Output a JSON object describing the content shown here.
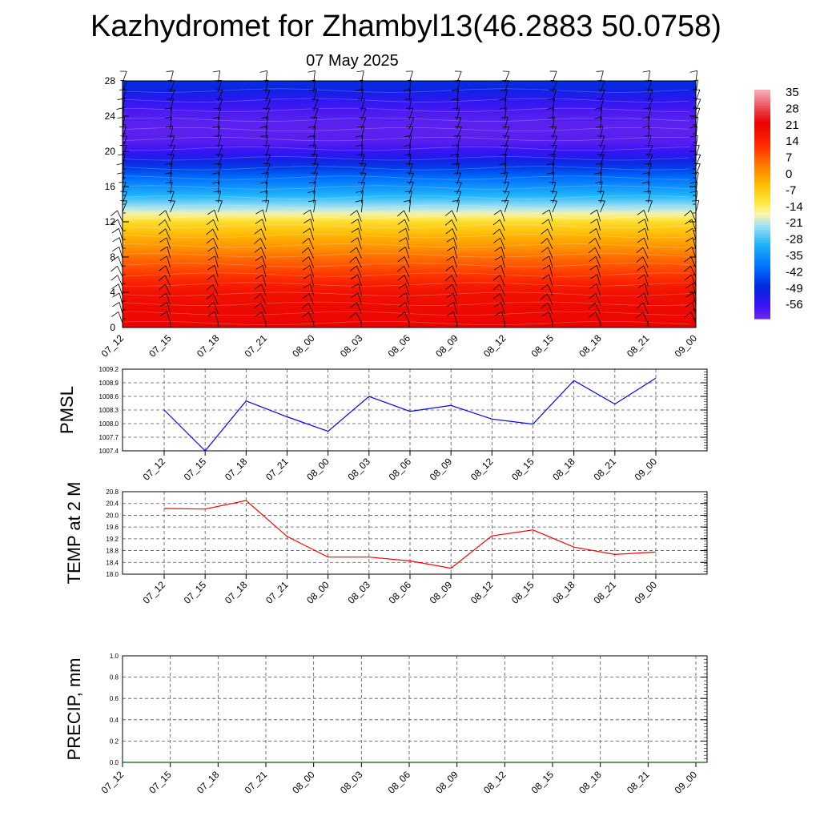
{
  "title": "Kazhydromet for Zhambyl13(46.2883 50.0758)",
  "subtitle": "07 May 2025",
  "chart_data": [
    {
      "type": "heatmap",
      "title": "",
      "ylim": [
        0,
        28
      ],
      "y_ticks": [
        "0",
        "4",
        "8",
        "12",
        "16",
        "20",
        "24",
        "28"
      ],
      "x_ticks": [
        "07_12",
        "07_15",
        "07_18",
        "07_21",
        "08_00",
        "08_03",
        "08_06",
        "08_09",
        "08_12",
        "08_15",
        "08_18",
        "08_21",
        "09_00"
      ],
      "colorbar_labels": [
        "35",
        "28",
        "21",
        "14",
        "7",
        "0",
        "-7",
        "-14",
        "-21",
        "-28",
        "-35",
        "-42",
        "-49",
        "-56"
      ],
      "colorbar_range": [
        -60,
        38
      ],
      "temperature_profile": {
        "levels": [
          0,
          1,
          2,
          3,
          4,
          5,
          6,
          7,
          8,
          9,
          10,
          11,
          12,
          12.5,
          13,
          13.5,
          14,
          15,
          16,
          17,
          18,
          19,
          20,
          21,
          22,
          23,
          24,
          25,
          26,
          27,
          28
        ],
        "values": [
          24,
          22,
          22,
          21,
          20,
          17,
          13,
          10,
          7,
          3,
          0,
          -4,
          -8,
          -12,
          -16,
          -19,
          -22,
          -28,
          -33,
          -38,
          -43,
          -49,
          -54,
          -57,
          -58,
          -58,
          -57,
          -55,
          -52,
          -48,
          -45
        ]
      },
      "wind_barbs": true
    },
    {
      "type": "line",
      "ylabel": "PMSL",
      "ylim": [
        1007.4,
        1009.2
      ],
      "y_ticks": [
        "1007.4",
        "1007.7",
        "1008.0",
        "1008.3",
        "1008.6",
        "1008.9",
        "1009.2"
      ],
      "x": [
        "07_12",
        "07_15",
        "07_18",
        "07_21",
        "08_00",
        "08_03",
        "08_06",
        "08_09",
        "08_12",
        "08_15",
        "08_18",
        "08_21",
        "09_00"
      ],
      "series": [
        {
          "color": "#0000ff",
          "values": [
            1008.3,
            1007.4,
            1008.5,
            1008.15,
            1007.83,
            1008.6,
            1008.27,
            1008.4,
            1008.1,
            1007.99,
            1008.95,
            1008.43,
            1009.0
          ]
        }
      ]
    },
    {
      "type": "line",
      "ylabel": "TEMP at 2 M",
      "ylim": [
        18.0,
        20.8
      ],
      "y_ticks": [
        "18.0",
        "18.4",
        "18.8",
        "19.2",
        "19.6",
        "20.0",
        "20.4",
        "20.8"
      ],
      "x": [
        "07_12",
        "07_15",
        "07_18",
        "07_21",
        "08_00",
        "08_03",
        "08_06",
        "08_09",
        "08_12",
        "08_15",
        "08_18",
        "08_21",
        "09_00"
      ],
      "series": [
        {
          "color": "#ff0000",
          "values": [
            20.23,
            20.21,
            20.5,
            19.28,
            18.58,
            18.58,
            18.45,
            18.2,
            19.3,
            19.5,
            18.92,
            18.67,
            18.75
          ]
        }
      ]
    },
    {
      "type": "line",
      "ylabel": "PRECIP, mm",
      "ylim": [
        0.0,
        1.0
      ],
      "y_ticks": [
        "0.0",
        "0.2",
        "0.4",
        "0.6",
        "0.8",
        "1.0"
      ],
      "x": [
        "07_12",
        "07_15",
        "07_18",
        "07_21",
        "08_00",
        "08_03",
        "08_06",
        "08_09",
        "08_12",
        "08_15",
        "08_18",
        "08_21",
        "09_00"
      ],
      "series": [
        {
          "color": "#006400",
          "values": [
            0,
            0,
            0,
            0,
            0,
            0,
            0,
            0,
            0,
            0,
            0,
            0,
            0
          ]
        }
      ]
    }
  ]
}
